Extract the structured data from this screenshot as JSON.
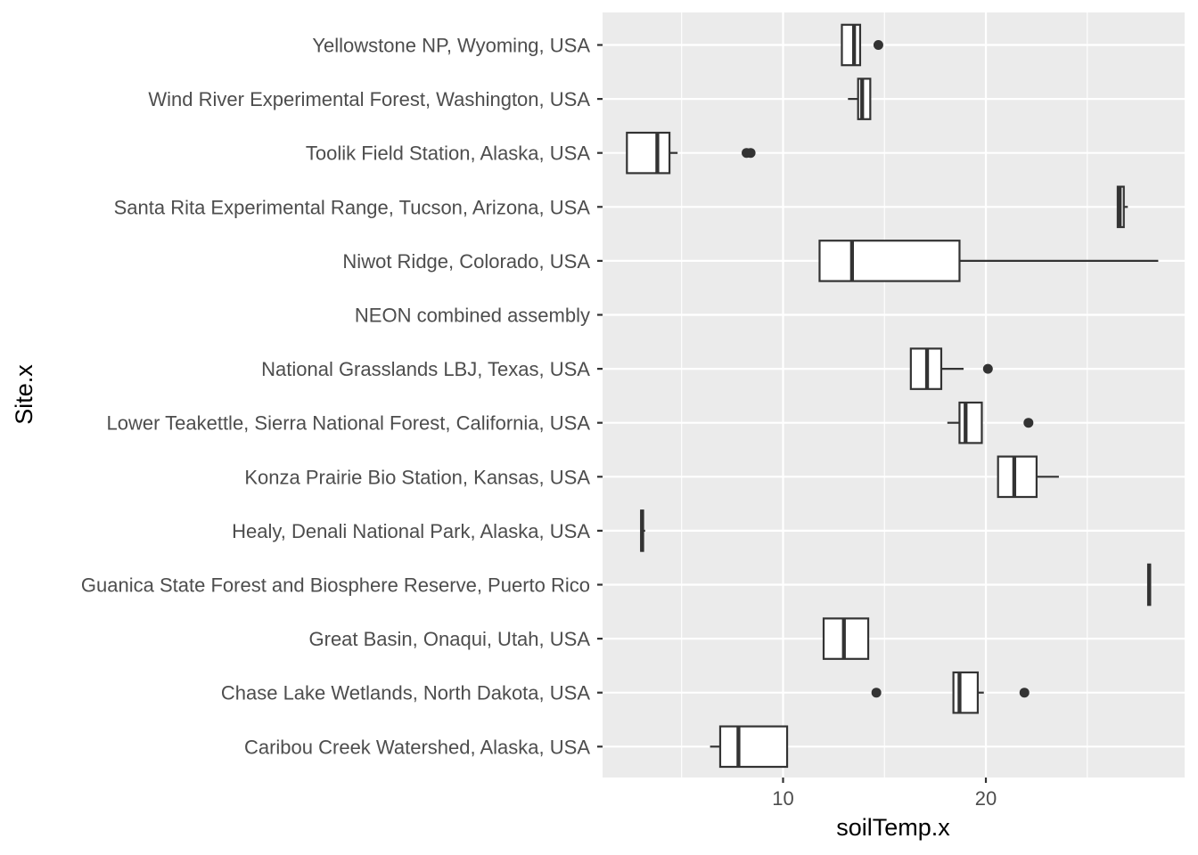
{
  "chart_data": {
    "type": "boxplot",
    "orientation": "horizontal",
    "xlabel": "soilTemp.x",
    "ylabel": "Site.x",
    "xlim": [
      1.1,
      29.8
    ],
    "xticks": [
      10,
      20
    ],
    "grid": true,
    "colors": {
      "panel": "#ebebeb",
      "grid": "#ffffff",
      "box_stroke": "#333333",
      "box_fill": "#ffffff",
      "outlier": "#333333"
    },
    "categories": [
      "Yellowstone NP, Wyoming, USA",
      "Wind River Experimental Forest, Washington, USA",
      "Toolik Field Station, Alaska, USA",
      "Santa Rita Experimental Range, Tucson, Arizona, USA",
      "Niwot Ridge, Colorado, USA",
      "NEON combined assembly",
      "National Grasslands LBJ, Texas, USA",
      "Lower Teakettle, Sierra National Forest, California, USA",
      "Konza Prairie Bio Station, Kansas, USA",
      "Healy, Denali National Park, Alaska, USA",
      "Guanica State Forest and Biosphere Reserve, Puerto Rico",
      "Great Basin, Onaqui, Utah, USA",
      "Chase Lake Wetlands, North Dakota, USA",
      "Caribou Creek Watershed, Alaska, USA"
    ],
    "boxes": [
      {
        "min": 12.9,
        "q1": 12.9,
        "median": 13.5,
        "q3": 13.8,
        "max": 13.8,
        "outliers": [
          14.7
        ]
      },
      {
        "min": 13.2,
        "q1": 13.7,
        "median": 13.9,
        "q3": 14.3,
        "max": 14.3,
        "outliers": []
      },
      {
        "min": 2.3,
        "q1": 2.3,
        "median": 3.8,
        "q3": 4.4,
        "max": 4.8,
        "outliers": [
          8.2,
          8.4
        ]
      },
      {
        "min": 26.5,
        "q1": 26.5,
        "median": 26.6,
        "q3": 26.8,
        "max": 27.0,
        "outliers": []
      },
      {
        "min": 11.8,
        "q1": 11.8,
        "median": 13.4,
        "q3": 18.7,
        "max": 28.5,
        "outliers": []
      },
      null,
      {
        "min": 16.3,
        "q1": 16.3,
        "median": 17.1,
        "q3": 17.8,
        "max": 18.9,
        "outliers": [
          20.1
        ]
      },
      {
        "min": 18.1,
        "q1": 18.7,
        "median": 19.0,
        "q3": 19.8,
        "max": 19.8,
        "outliers": [
          22.1
        ]
      },
      {
        "min": 20.6,
        "q1": 20.6,
        "median": 21.4,
        "q3": 22.5,
        "max": 23.6,
        "outliers": []
      },
      {
        "min": 3.0,
        "q1": 3.0,
        "median": 3.05,
        "q3": 3.1,
        "max": 3.2,
        "outliers": []
      },
      {
        "min": 28.0,
        "q1": 28.0,
        "median": 28.05,
        "q3": 28.1,
        "max": 28.1,
        "outliers": []
      },
      {
        "min": 12.0,
        "q1": 12.0,
        "median": 13.0,
        "q3": 14.2,
        "max": 14.2,
        "outliers": []
      },
      {
        "min": 18.4,
        "q1": 18.4,
        "median": 18.7,
        "q3": 19.6,
        "max": 19.9,
        "outliers": [
          14.6,
          21.9
        ]
      },
      {
        "min": 6.4,
        "q1": 6.9,
        "median": 7.8,
        "q3": 10.2,
        "max": 10.2,
        "outliers": []
      }
    ]
  }
}
